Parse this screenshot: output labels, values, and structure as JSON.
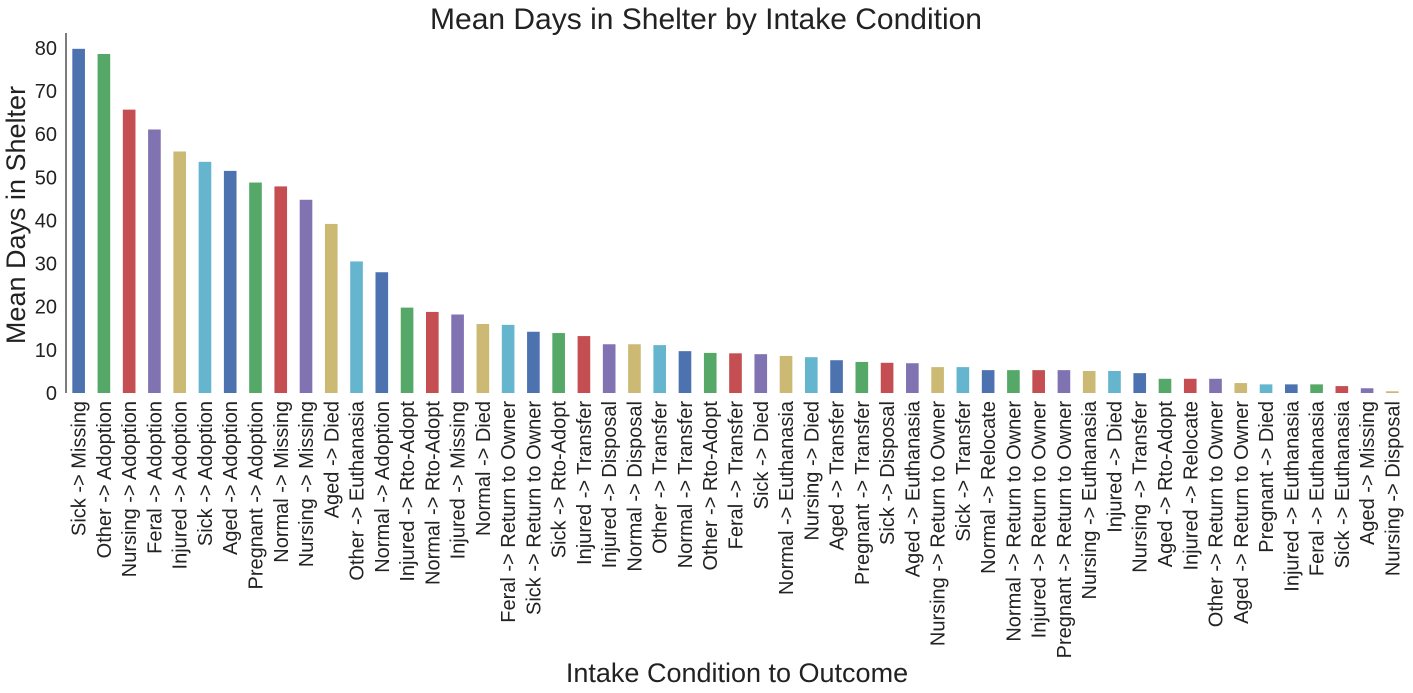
{
  "chart_data": {
    "type": "bar",
    "title": "Mean Days in Shelter by Intake Condition",
    "xlabel": "Intake Condition to Outcome",
    "ylabel": "Mean Days in Shelter",
    "ylim": [
      0,
      84
    ],
    "yticks": [
      0,
      10,
      20,
      30,
      40,
      50,
      60,
      70,
      80
    ],
    "grid": false,
    "legend": "none",
    "palette": [
      "#4c72b0",
      "#55a868",
      "#c44e52",
      "#8172b2",
      "#ccb974",
      "#64b5cd"
    ],
    "categories": [
      "Sick -> Missing",
      "Other -> Adoption",
      "Nursing -> Adoption",
      "Feral -> Adoption",
      "Injured -> Adoption",
      "Sick -> Adoption",
      "Aged -> Adoption",
      "Pregnant -> Adoption",
      "Normal -> Missing",
      "Nursing -> Missing",
      "Aged -> Died",
      "Other -> Euthanasia",
      "Normal -> Adoption",
      "Injured -> Rto-Adopt",
      "Normal -> Rto-Adopt",
      "Injured -> Missing",
      "Normal -> Died",
      "Feral -> Return to Owner",
      "Sick -> Return to Owner",
      "Sick -> Rto-Adopt",
      "Injured -> Transfer",
      "Injured -> Disposal",
      "Normal -> Disposal",
      "Other -> Transfer",
      "Normal -> Transfer",
      "Other -> Rto-Adopt",
      "Feral -> Transfer",
      "Sick -> Died",
      "Normal -> Euthanasia",
      "Nursing -> Died",
      "Aged -> Transfer",
      "Pregnant -> Transfer",
      "Sick -> Disposal",
      "Aged -> Euthanasia",
      "Nursing -> Return to Owner",
      "Sick -> Transfer",
      "Normal -> Relocate",
      "Normal -> Return to Owner",
      "Injured -> Return to Owner",
      "Pregnant -> Return to Owner",
      "Nursing -> Euthanasia",
      "Injured -> Died",
      "Nursing -> Transfer",
      "Aged -> Rto-Adopt",
      "Injured -> Relocate",
      "Other -> Return to Owner",
      "Aged -> Return to Owner",
      "Pregnant -> Died",
      "Injured -> Euthanasia",
      "Feral -> Euthanasia",
      "Sick -> Euthanasia",
      "Aged -> Missing",
      "Nursing -> Disposal"
    ],
    "values": [
      79.8,
      78.6,
      65.7,
      61.1,
      56.0,
      53.6,
      51.5,
      48.8,
      47.9,
      44.8,
      39.2,
      30.5,
      28.0,
      19.8,
      18.8,
      18.2,
      16.0,
      15.8,
      14.2,
      13.9,
      13.2,
      11.3,
      11.3,
      11.1,
      9.7,
      9.3,
      9.2,
      9.0,
      8.6,
      8.3,
      7.6,
      7.2,
      7.0,
      6.9,
      6.0,
      6.0,
      5.3,
      5.3,
      5.3,
      5.3,
      5.1,
      5.1,
      4.6,
      3.3,
      3.3,
      3.3,
      2.3,
      2.0,
      2.0,
      2.0,
      1.6,
      1.1,
      0.4
    ]
  }
}
